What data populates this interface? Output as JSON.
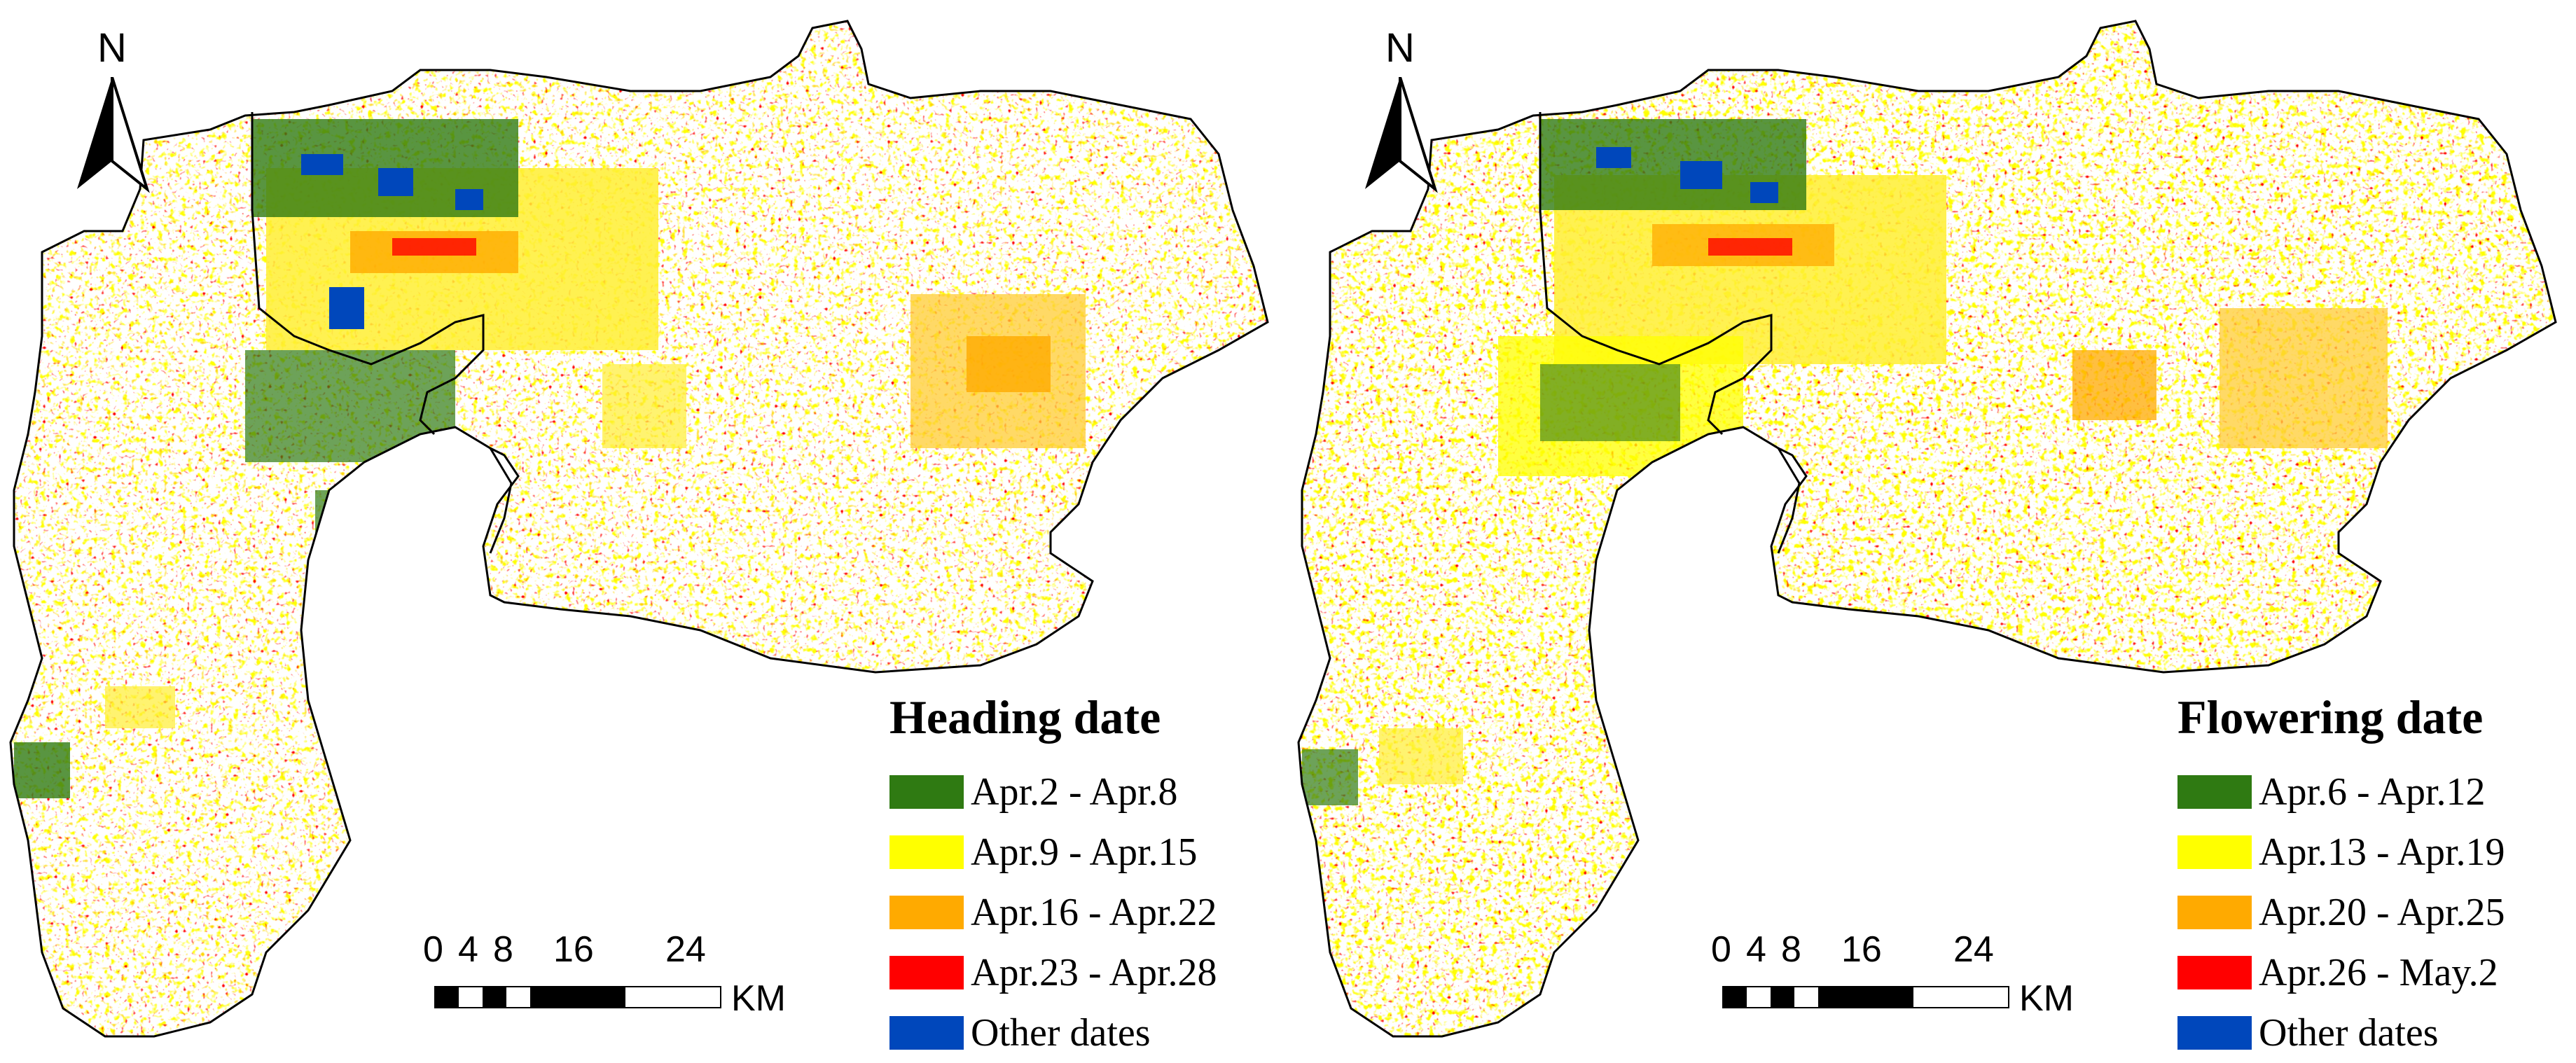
{
  "colors": {
    "green": "#2f7a12",
    "yellow": "#ffff00",
    "orange": "#ffaa00",
    "red": "#ff0000",
    "blue": "#0047bb",
    "boundary": "#000000"
  },
  "maps": [
    {
      "north_label": "N",
      "legend": {
        "title": "Heading date",
        "items": [
          {
            "label": "Apr.2 - Apr.8",
            "color": "#2f7a12"
          },
          {
            "label": "Apr.9 - Apr.15",
            "color": "#ffff00"
          },
          {
            "label": "Apr.16 - Apr.22",
            "color": "#ffaa00"
          },
          {
            "label": "Apr.23 - Apr.28",
            "color": "#ff0000"
          },
          {
            "label": "Other dates",
            "color": "#0047bb"
          }
        ]
      },
      "scale": {
        "ticks": [
          "0",
          "4",
          "8",
          "16",
          "24"
        ],
        "unit": "KM"
      }
    },
    {
      "north_label": "N",
      "legend": {
        "title": "Flowering date",
        "items": [
          {
            "label": "Apr.6 - Apr.12",
            "color": "#2f7a12"
          },
          {
            "label": "Apr.13 - Apr.19",
            "color": "#ffff00"
          },
          {
            "label": "Apr.20 - Apr.25",
            "color": "#ffaa00"
          },
          {
            "label": "Apr.26 - May.2",
            "color": "#ff0000"
          },
          {
            "label": "Other dates",
            "color": "#0047bb"
          }
        ]
      },
      "scale": {
        "ticks": [
          "0",
          "4",
          "8",
          "16",
          "24"
        ],
        "unit": "KM"
      }
    }
  ]
}
